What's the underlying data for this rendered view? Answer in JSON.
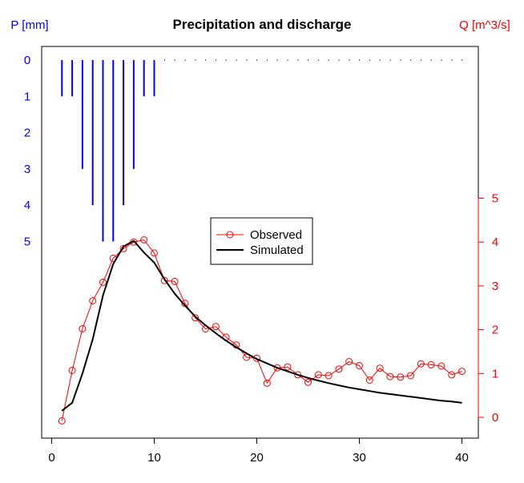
{
  "chart_data": {
    "title": "Precipitation and discharge",
    "type": "line",
    "grid": false,
    "legend_placement": "center",
    "x": {
      "values": [
        1,
        2,
        3,
        4,
        5,
        6,
        7,
        8,
        9,
        10,
        11,
        12,
        13,
        14,
        15,
        16,
        17,
        18,
        19,
        20,
        21,
        22,
        23,
        24,
        25,
        26,
        27,
        28,
        29,
        30,
        31,
        32,
        33,
        34,
        35,
        36,
        37,
        38,
        39,
        40
      ],
      "ticks": [
        "0",
        "10",
        "20",
        "30",
        "40"
      ],
      "xlim": [
        0,
        41
      ]
    },
    "precip_axis": {
      "label": "P [mm]",
      "ticks": [
        "0",
        "1",
        "2",
        "3",
        "4",
        "5"
      ],
      "color": "#0000ff",
      "inverted": true
    },
    "discharge_axis": {
      "label": "Q [m^3/s]",
      "ticks": [
        "0",
        "1",
        "2",
        "3",
        "4",
        "5"
      ],
      "color": "#ff0000"
    },
    "precipitation": {
      "type": "bar",
      "color": "#0000ff",
      "values": [
        1,
        1,
        3,
        4,
        5,
        5,
        4,
        3,
        1,
        1,
        0,
        0,
        0,
        0,
        0,
        0,
        0,
        0,
        0,
        0,
        0,
        0,
        0,
        0,
        0,
        0,
        0,
        0,
        0,
        0,
        0,
        0,
        0,
        0,
        0,
        0,
        0,
        0,
        0,
        0
      ]
    },
    "series": [
      {
        "name": "Observed",
        "color": "#ff0000",
        "marker": "circle",
        "values": [
          -0.08,
          1.07,
          2.02,
          2.66,
          3.08,
          3.63,
          3.85,
          4.0,
          4.05,
          3.75,
          3.12,
          3.1,
          2.6,
          2.27,
          2.02,
          2.07,
          1.83,
          1.65,
          1.37,
          1.35,
          0.78,
          1.13,
          1.15,
          0.97,
          0.8,
          0.97,
          0.95,
          1.1,
          1.27,
          1.18,
          0.85,
          1.12,
          0.93,
          0.92,
          0.95,
          1.22,
          1.2,
          1.17,
          0.97,
          1.05
        ]
      },
      {
        "name": "Simulated",
        "color": "#000000",
        "marker": "none",
        "values": [
          0.15,
          0.33,
          1.0,
          1.78,
          2.78,
          3.5,
          3.9,
          4.03,
          3.76,
          3.53,
          3.15,
          2.82,
          2.55,
          2.3,
          2.1,
          1.92,
          1.75,
          1.6,
          1.46,
          1.33,
          1.23,
          1.13,
          1.05,
          0.97,
          0.9,
          0.84,
          0.78,
          0.73,
          0.68,
          0.64,
          0.6,
          0.56,
          0.53,
          0.5,
          0.47,
          0.44,
          0.41,
          0.38,
          0.36,
          0.33
        ]
      }
    ]
  }
}
